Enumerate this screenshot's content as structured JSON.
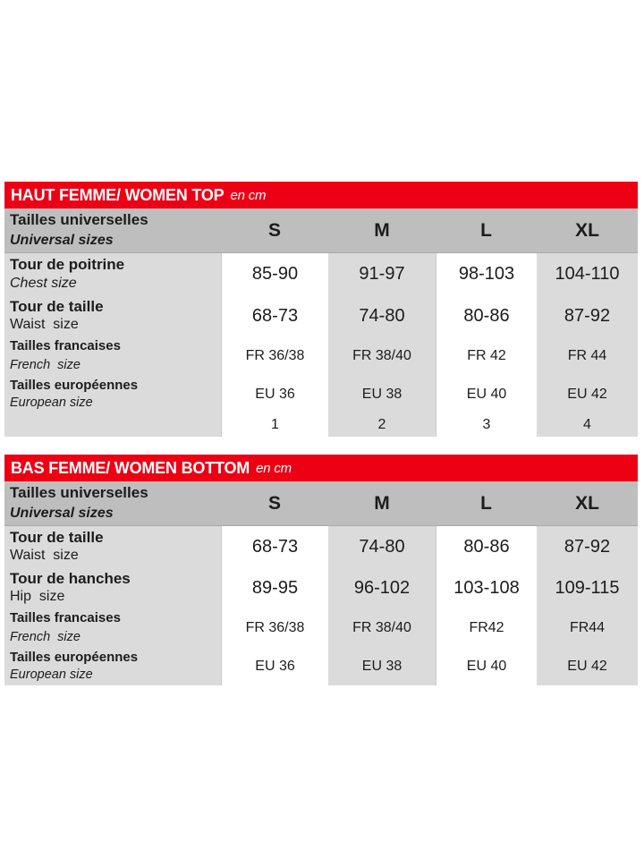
{
  "colors": {
    "red": "#ed0014",
    "header_gray": "#bebebe",
    "body_gray": "#dbdbdb",
    "text": "#1c1c1c"
  },
  "tables": [
    {
      "title": "HAUT FEMME/ WOMEN TOP",
      "unit": "en cm",
      "header": {
        "label_fr": "Tailles universelles",
        "label_en": "Universal sizes",
        "columns": [
          "S",
          "M",
          "L",
          "XL"
        ]
      },
      "rows": [
        {
          "label_fr": "Tour de poitrine",
          "label_en": "Chest size",
          "values": [
            "85-90",
            "91-97",
            "98-103",
            "104-110"
          ]
        },
        {
          "label_fr": "Tour de taille",
          "label_en": "Waist  size",
          "values": [
            "68-73",
            "74-80",
            "80-86",
            "87-92"
          ]
        },
        {
          "label_fr": "Tailles francaises",
          "label_en": "French  size",
          "values": [
            "FR 36/38",
            "FR 38/40",
            "FR 42",
            "FR 44"
          ]
        },
        {
          "label_fr": "Tailles européennes",
          "label_en": "European size",
          "values": [
            "EU 36",
            "EU 38",
            "EU 40",
            "EU 42"
          ]
        },
        {
          "label_fr": "",
          "label_en": "",
          "values": [
            "1",
            "2",
            "3",
            "4"
          ]
        }
      ]
    },
    {
      "title": "BAS FEMME/ WOMEN BOTTOM",
      "unit": "en cm",
      "header": {
        "label_fr": "Tailles universelles",
        "label_en": "Universal sizes",
        "columns": [
          "S",
          "M",
          "L",
          "XL"
        ]
      },
      "rows": [
        {
          "label_fr": "Tour de taille",
          "label_en": "Waist  size",
          "values": [
            "68-73",
            "74-80",
            "80-86",
            "87-92"
          ]
        },
        {
          "label_fr": "Tour de hanches",
          "label_en": "Hip  size",
          "values": [
            "89-95",
            "96-102",
            "103-108",
            "109-115"
          ]
        },
        {
          "label_fr": "Tailles francaises",
          "label_en": "French  size",
          "values": [
            "FR 36/38",
            "FR 38/40",
            "FR42",
            "FR44"
          ]
        },
        {
          "label_fr": "Tailles européennes",
          "label_en": "European size",
          "values": [
            "EU 36",
            "EU 38",
            "EU 40",
            "EU 42"
          ]
        }
      ]
    }
  ]
}
